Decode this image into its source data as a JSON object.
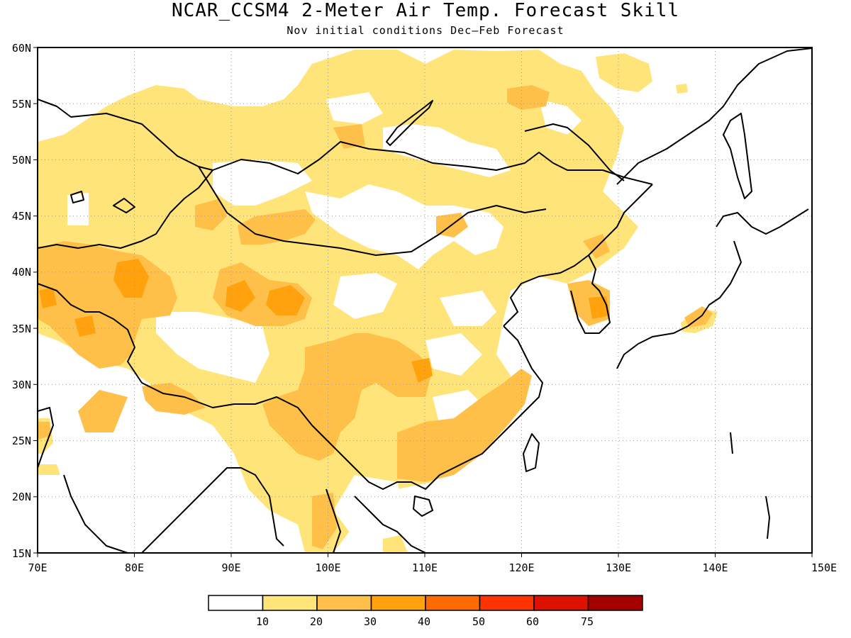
{
  "title": "NCAR_CCSM4 2-Meter Air Temp. Forecast Skill",
  "subtitle": "Nov initial conditions  Dec–Feb Forecast",
  "map": {
    "lon_range": [
      70,
      150
    ],
    "lat_range": [
      15,
      60
    ],
    "lon_ticks": [
      "70E",
      "80E",
      "90E",
      "100E",
      "110E",
      "120E",
      "130E",
      "140E",
      "150E"
    ],
    "lat_ticks": [
      "15N",
      "20N",
      "25N",
      "30N",
      "35N",
      "40N",
      "45N",
      "50N",
      "55N",
      "60N"
    ],
    "gridlines": "dotted",
    "regions_shown": "China, Mongolia, Central Asia, Korea, Japan, Southeast Asia"
  },
  "legend": {
    "labels": [
      "10",
      "20",
      "30",
      "40",
      "50",
      "60",
      "75"
    ],
    "colors": [
      "#ffffff",
      "#ffe47a",
      "#ffc04a",
      "#ffa20e",
      "#ff6a00",
      "#ff3300",
      "#dd1100",
      "#a50000"
    ]
  },
  "chart_data": {
    "type": "heatmap",
    "title": "NCAR_CCSM4 2-Meter Air Temp. Forecast Skill",
    "subtitle": "Nov initial conditions  Dec–Feb Forecast",
    "x_range": [
      70,
      150
    ],
    "y_range": [
      15,
      60
    ],
    "bins": [
      10,
      20,
      30,
      40,
      50,
      60,
      75
    ],
    "grid": true,
    "regions": [
      {
        "name": "central-asia-west",
        "level": 30,
        "approx_bbox_lonlat": [
          70,
          34,
          84,
          44
        ]
      },
      {
        "name": "tarim-basin",
        "level": 30,
        "approx_bbox_lonlat": [
          91,
          36,
          98,
          40
        ]
      },
      {
        "name": "central-china",
        "level": 30,
        "approx_bbox_lonlat": [
          98,
          26,
          113,
          35
        ]
      },
      {
        "name": "south-china",
        "level": 30,
        "approx_bbox_lonlat": [
          106,
          21,
          119,
          26
        ]
      },
      {
        "name": "korea",
        "level": 40,
        "approx_bbox_lonlat": [
          126,
          35,
          128,
          38
        ]
      },
      {
        "name": "japan-honshu",
        "level": 30,
        "approx_bbox_lonlat": [
          137,
          35,
          140,
          37
        ]
      },
      {
        "name": "northern-belt",
        "level": 20,
        "approx_bbox_lonlat": [
          70,
          40,
          120,
          58
        ]
      }
    ]
  }
}
